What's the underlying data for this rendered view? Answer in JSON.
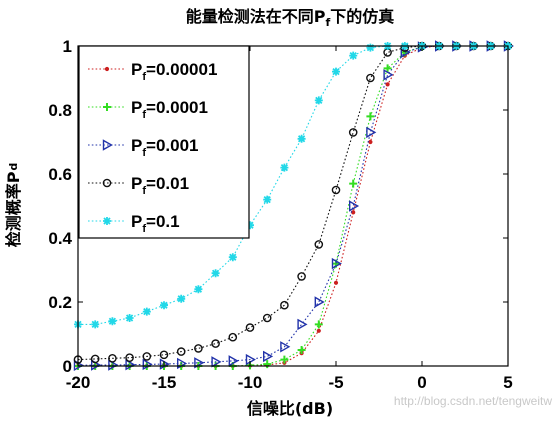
{
  "chart_data": {
    "type": "line",
    "title_prefix": "能量检测法在不同P",
    "title_sub": "f",
    "title_suffix": "下的仿真",
    "xlabel": "信噪比(dB)",
    "ylabel_main": "检测概率P",
    "ylabel_sub": "d",
    "xlim": [
      -20,
      5
    ],
    "ylim": [
      0,
      1
    ],
    "xticks": [
      "-20",
      "-15",
      "-10",
      "-5",
      "0",
      "5"
    ],
    "yticks": [
      "0",
      "0.2",
      "0.4",
      "0.6",
      "0.8",
      "1"
    ],
    "grid": false,
    "legend_position": "top-left",
    "x": [
      -20,
      -19,
      -18,
      -17,
      -16,
      -15,
      -14,
      -13,
      -12,
      -11,
      -10,
      -9,
      -8,
      -7,
      -6,
      -5,
      -4,
      -3,
      -2,
      -1,
      0,
      1,
      2,
      3,
      4,
      5
    ],
    "series": [
      {
        "legend_main": "P",
        "legend_sub": "f",
        "legend_value": "=0.00001",
        "color": "#cc2020",
        "marker": "dot",
        "values": [
          0.0,
          0.0,
          0.0,
          0.0,
          0.0,
          0.0,
          0.0,
          0.0,
          0.0,
          0.0,
          0.001,
          0.003,
          0.01,
          0.04,
          0.11,
          0.26,
          0.48,
          0.7,
          0.88,
          0.97,
          0.995,
          1.0,
          1.0,
          1.0,
          1.0,
          1.0
        ]
      },
      {
        "legend_main": "P",
        "legend_sub": "f",
        "legend_value": "=0.0001",
        "color": "#33dd22",
        "marker": "plus",
        "values": [
          0.0,
          0.0,
          0.0,
          0.0,
          0.0,
          0.0,
          0.0,
          0.0,
          0.0,
          0.0,
          0.002,
          0.006,
          0.02,
          0.05,
          0.13,
          0.32,
          0.57,
          0.78,
          0.93,
          0.98,
          0.998,
          1.0,
          1.0,
          1.0,
          1.0,
          1.0
        ]
      },
      {
        "legend_main": "P",
        "legend_sub": "f",
        "legend_value": "=0.001",
        "color": "#2233aa",
        "marker": "triangle",
        "values": [
          0.002,
          0.003,
          0.003,
          0.004,
          0.005,
          0.006,
          0.008,
          0.01,
          0.013,
          0.016,
          0.02,
          0.03,
          0.06,
          0.13,
          0.2,
          0.32,
          0.5,
          0.73,
          0.91,
          0.98,
          0.997,
          1.0,
          1.0,
          1.0,
          1.0,
          1.0
        ]
      },
      {
        "legend_main": "P",
        "legend_sub": "f",
        "legend_value": "=0.01",
        "color": "#111111",
        "marker": "circle",
        "values": [
          0.02,
          0.022,
          0.024,
          0.026,
          0.03,
          0.035,
          0.045,
          0.055,
          0.07,
          0.09,
          0.12,
          0.15,
          0.19,
          0.28,
          0.38,
          0.55,
          0.73,
          0.9,
          0.98,
          0.995,
          1.0,
          1.0,
          1.0,
          1.0,
          1.0,
          1.0
        ]
      },
      {
        "legend_main": "P",
        "legend_sub": "f",
        "legend_value": "=0.1",
        "color": "#22d8e8",
        "marker": "star",
        "values": [
          0.13,
          0.13,
          0.14,
          0.15,
          0.17,
          0.19,
          0.21,
          0.24,
          0.29,
          0.34,
          0.44,
          0.52,
          0.62,
          0.71,
          0.83,
          0.92,
          0.97,
          0.995,
          1.0,
          1.0,
          1.0,
          1.0,
          1.0,
          1.0,
          1.0,
          1.0
        ]
      }
    ]
  },
  "watermark": "http://blog.csdn.net/tengweitw"
}
